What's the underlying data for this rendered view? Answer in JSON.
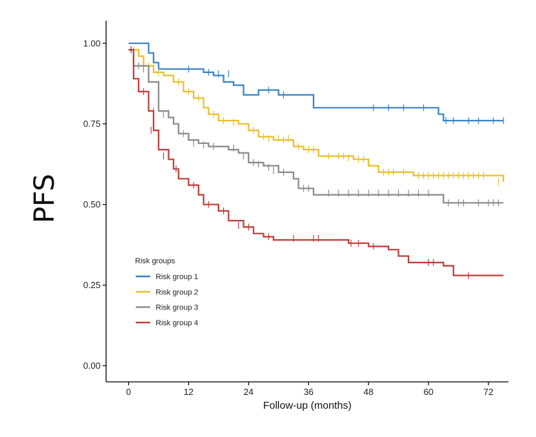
{
  "chart_data": {
    "type": "line",
    "step": true,
    "xlabel": "Follow-up (months)",
    "ylabel": "PFS",
    "xlim": [
      -4.5,
      76
    ],
    "ylim": [
      -0.05,
      1.07
    ],
    "xticks": [
      0,
      12,
      24,
      36,
      48,
      60,
      72
    ],
    "xtick_labels": [
      "0",
      "12",
      "24",
      "36",
      "48",
      "60",
      "72"
    ],
    "yticks": [
      0,
      0.25,
      0.5,
      0.75,
      1
    ],
    "ytick_labels": [
      "0.00",
      "0.25",
      "0.50",
      "0.75",
      "1.00"
    ],
    "grid": false,
    "legend": {
      "title": "Risk groups",
      "position": "bottom-left"
    },
    "series": [
      {
        "name": "Risk group 1",
        "color": "#3b86c6",
        "points": [
          [
            0,
            1.0
          ],
          [
            4,
            0.97
          ],
          [
            5,
            0.94
          ],
          [
            6,
            0.92
          ],
          [
            15,
            0.91
          ],
          [
            17,
            0.9
          ],
          [
            19,
            0.88
          ],
          [
            21,
            0.87
          ],
          [
            23,
            0.84
          ],
          [
            26,
            0.855
          ],
          [
            30,
            0.84
          ],
          [
            37,
            0.8
          ],
          [
            62,
            0.78
          ],
          [
            63,
            0.76
          ],
          [
            75,
            0.76
          ]
        ],
        "censored": [
          [
            0.5,
            0.98
          ],
          [
            12,
            0.92
          ],
          [
            16,
            0.91
          ],
          [
            18,
            0.905
          ],
          [
            20,
            0.905
          ],
          [
            28,
            0.855
          ],
          [
            31,
            0.84
          ],
          [
            49,
            0.8
          ],
          [
            52,
            0.8
          ],
          [
            55,
            0.8
          ],
          [
            59,
            0.8
          ],
          [
            63.5,
            0.76
          ],
          [
            65,
            0.76
          ],
          [
            68,
            0.76
          ],
          [
            70,
            0.76
          ],
          [
            73,
            0.76
          ],
          [
            75,
            0.76
          ]
        ]
      },
      {
        "name": "Risk group 2",
        "color": "#e8c12c",
        "points": [
          [
            0,
            0.98
          ],
          [
            2,
            0.96
          ],
          [
            3,
            0.93
          ],
          [
            5,
            0.91
          ],
          [
            7,
            0.9
          ],
          [
            9,
            0.88
          ],
          [
            11,
            0.85
          ],
          [
            13,
            0.83
          ],
          [
            15,
            0.8
          ],
          [
            16,
            0.78
          ],
          [
            18,
            0.76
          ],
          [
            22,
            0.75
          ],
          [
            24,
            0.73
          ],
          [
            26,
            0.71
          ],
          [
            29,
            0.7
          ],
          [
            33,
            0.68
          ],
          [
            35,
            0.67
          ],
          [
            38,
            0.65
          ],
          [
            45,
            0.64
          ],
          [
            48,
            0.62
          ],
          [
            50,
            0.6
          ],
          [
            54,
            0.6
          ],
          [
            57,
            0.59
          ],
          [
            75,
            0.57
          ]
        ],
        "censored": [
          [
            1,
            0.98
          ],
          [
            4,
            0.93
          ],
          [
            6,
            0.91
          ],
          [
            10,
            0.88
          ],
          [
            12,
            0.85
          ],
          [
            14,
            0.83
          ],
          [
            17,
            0.78
          ],
          [
            19,
            0.76
          ],
          [
            21,
            0.755
          ],
          [
            25,
            0.73
          ],
          [
            27,
            0.71
          ],
          [
            28,
            0.705
          ],
          [
            30,
            0.705
          ],
          [
            31,
            0.7
          ],
          [
            32,
            0.705
          ],
          [
            34,
            0.68
          ],
          [
            36,
            0.67
          ],
          [
            37,
            0.67
          ],
          [
            40,
            0.65
          ],
          [
            42,
            0.65
          ],
          [
            43,
            0.65
          ],
          [
            44,
            0.645
          ],
          [
            46,
            0.64
          ],
          [
            47,
            0.64
          ],
          [
            51,
            0.6
          ],
          [
            52,
            0.6
          ],
          [
            53,
            0.6
          ],
          [
            55,
            0.6
          ],
          [
            58,
            0.59
          ],
          [
            59,
            0.59
          ],
          [
            60,
            0.59
          ],
          [
            61,
            0.59
          ],
          [
            62,
            0.59
          ],
          [
            63,
            0.59
          ],
          [
            64,
            0.59
          ],
          [
            65,
            0.59
          ],
          [
            66,
            0.59
          ],
          [
            67,
            0.59
          ],
          [
            68,
            0.59
          ],
          [
            69,
            0.59
          ],
          [
            70,
            0.59
          ],
          [
            71,
            0.59
          ],
          [
            74,
            0.57
          ]
        ]
      },
      {
        "name": "Risk group 3",
        "color": "#8c8c8c",
        "points": [
          [
            0,
            0.98
          ],
          [
            1,
            0.93
          ],
          [
            4,
            0.88
          ],
          [
            6,
            0.79
          ],
          [
            8,
            0.77
          ],
          [
            9,
            0.75
          ],
          [
            10,
            0.72
          ],
          [
            12,
            0.7
          ],
          [
            14,
            0.69
          ],
          [
            16,
            0.68
          ],
          [
            20,
            0.67
          ],
          [
            22,
            0.66
          ],
          [
            24,
            0.63
          ],
          [
            27,
            0.62
          ],
          [
            30,
            0.6
          ],
          [
            33,
            0.58
          ],
          [
            34,
            0.55
          ],
          [
            37,
            0.53
          ],
          [
            63,
            0.505
          ],
          [
            75,
            0.505
          ]
        ],
        "censored": [
          [
            2,
            0.93
          ],
          [
            3,
            0.92
          ],
          [
            5,
            0.79
          ],
          [
            7,
            0.78
          ],
          [
            11,
            0.72
          ],
          [
            13,
            0.69
          ],
          [
            15,
            0.685
          ],
          [
            17,
            0.68
          ],
          [
            21,
            0.675
          ],
          [
            23,
            0.65
          ],
          [
            25,
            0.63
          ],
          [
            26,
            0.625
          ],
          [
            28,
            0.615
          ],
          [
            29,
            0.605
          ],
          [
            31,
            0.6
          ],
          [
            35,
            0.55
          ],
          [
            36,
            0.55
          ],
          [
            40,
            0.535
          ],
          [
            42,
            0.535
          ],
          [
            44,
            0.535
          ],
          [
            46,
            0.535
          ],
          [
            48,
            0.535
          ],
          [
            50,
            0.535
          ],
          [
            52,
            0.535
          ],
          [
            54,
            0.535
          ],
          [
            56,
            0.535
          ],
          [
            58,
            0.535
          ],
          [
            60,
            0.535
          ],
          [
            64,
            0.505
          ],
          [
            66,
            0.505
          ],
          [
            67,
            0.505
          ],
          [
            70,
            0.505
          ],
          [
            72,
            0.505
          ],
          [
            73,
            0.505
          ],
          [
            74,
            0.505
          ]
        ]
      },
      {
        "name": "Risk group 4",
        "color": "#c0403c",
        "points": [
          [
            0,
            0.98
          ],
          [
            1,
            0.89
          ],
          [
            2,
            0.85
          ],
          [
            4,
            0.79
          ],
          [
            5,
            0.73
          ],
          [
            6,
            0.67
          ],
          [
            8,
            0.64
          ],
          [
            9,
            0.61
          ],
          [
            10,
            0.58
          ],
          [
            12,
            0.56
          ],
          [
            14,
            0.53
          ],
          [
            15,
            0.5
          ],
          [
            18,
            0.48
          ],
          [
            20,
            0.45
          ],
          [
            23,
            0.43
          ],
          [
            25,
            0.41
          ],
          [
            27,
            0.4
          ],
          [
            29,
            0.39
          ],
          [
            40,
            0.39
          ],
          [
            44,
            0.38
          ],
          [
            48,
            0.37
          ],
          [
            52,
            0.36
          ],
          [
            54,
            0.34
          ],
          [
            56,
            0.32
          ],
          [
            63,
            0.31
          ],
          [
            65,
            0.28
          ],
          [
            75,
            0.28
          ]
        ],
        "censored": [
          [
            0.5,
            0.98
          ],
          [
            3,
            0.85
          ],
          [
            4.5,
            0.73
          ],
          [
            7,
            0.65
          ],
          [
            9.5,
            0.61
          ],
          [
            13,
            0.56
          ],
          [
            16,
            0.5
          ],
          [
            19,
            0.48
          ],
          [
            22,
            0.435
          ],
          [
            24,
            0.43
          ],
          [
            28,
            0.4
          ],
          [
            33,
            0.395
          ],
          [
            37,
            0.395
          ],
          [
            38,
            0.395
          ],
          [
            44.5,
            0.38
          ],
          [
            46,
            0.38
          ],
          [
            49,
            0.37
          ],
          [
            60,
            0.32
          ],
          [
            61,
            0.32
          ],
          [
            68,
            0.28
          ]
        ]
      }
    ]
  }
}
